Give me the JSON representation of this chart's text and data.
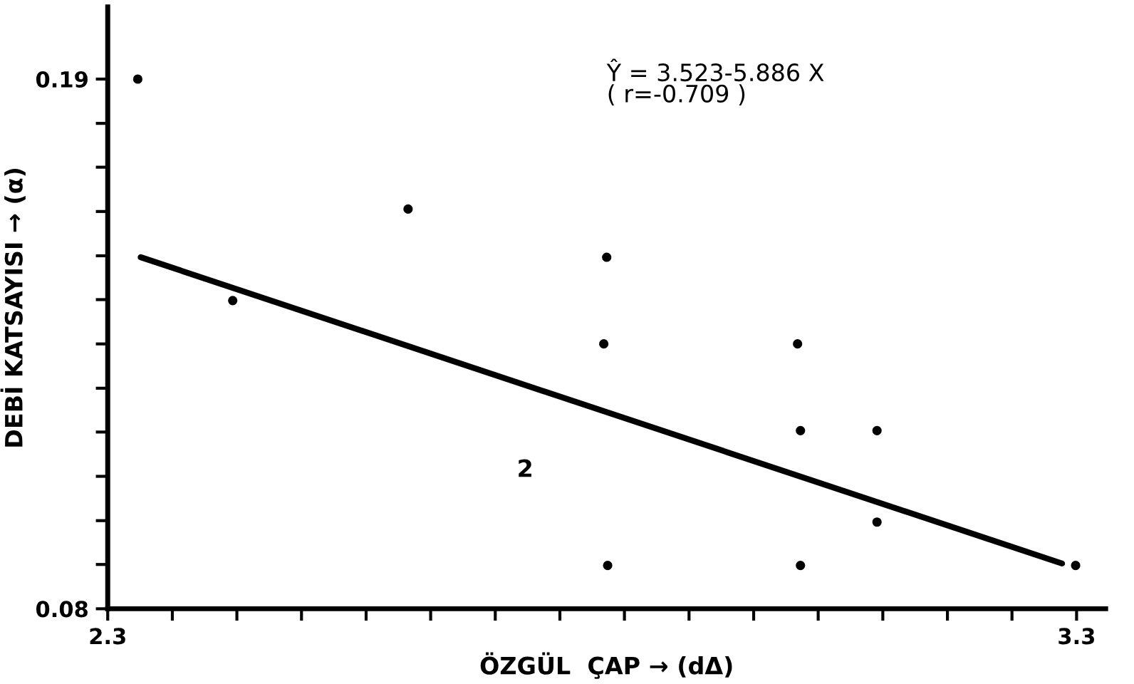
{
  "chart_data": {
    "type": "scatter",
    "xlabel": "ÖZGÜL  ÇAP → (dΔ)",
    "ylabel": "DEBİ KATSAYISI → (α)",
    "xlim": [
      2.3,
      3.33
    ],
    "ylim": [
      0.08,
      0.205
    ],
    "xticks": [
      2.3,
      {
        "value": 2.3667,
        "label": null
      },
      {
        "value": 2.4333,
        "label": null
      },
      {
        "value": 2.5,
        "label": null
      },
      {
        "value": 2.5667,
        "label": null
      },
      {
        "value": 2.6333,
        "label": null
      },
      {
        "value": 2.7,
        "label": null
      },
      {
        "value": 2.7667,
        "label": null
      },
      {
        "value": 2.8333,
        "label": null
      },
      {
        "value": 2.9,
        "label": null
      },
      {
        "value": 2.9667,
        "label": null
      },
      {
        "value": 3.0333,
        "label": null
      },
      {
        "value": 3.1,
        "label": null
      },
      {
        "value": 3.1667,
        "label": null
      },
      {
        "value": 3.2333,
        "label": null
      },
      3.3
    ],
    "yticks": [
      {
        "value": 0.08,
        "label": "0.08"
      },
      {
        "value": 0.0892,
        "label": null
      },
      {
        "value": 0.0983,
        "label": null
      },
      {
        "value": 0.1075,
        "label": null
      },
      {
        "value": 0.1167,
        "label": null
      },
      {
        "value": 0.1258,
        "label": null
      },
      {
        "value": 0.135,
        "label": null
      },
      {
        "value": 0.1442,
        "label": null
      },
      {
        "value": 0.1533,
        "label": null
      },
      {
        "value": 0.1625,
        "label": null
      },
      {
        "value": 0.1717,
        "label": null
      },
      {
        "value": 0.1808,
        "label": null
      },
      0.19
    ],
    "grid": false,
    "marker": "circle",
    "series": [
      {
        "color": "#000000",
        "x": [
          2.331,
          2.429,
          2.61,
          2.815,
          2.812,
          2.816,
          3.012,
          3.015,
          3.094,
          3.094,
          3.015,
          3.299
        ],
        "values": [
          0.19,
          0.144,
          0.163,
          0.153,
          0.135,
          0.089,
          0.135,
          0.117,
          0.117,
          0.098,
          0.089,
          0.089
        ]
      },
      {
        "type": "line",
        "color": "#000000",
        "x": [
          2.334,
          3.285
        ],
        "values": [
          0.153,
          0.0894
        ],
        "marker": "none"
      }
    ],
    "annotations": [
      "Ŷ = 3.523-5.886 X\n( r=-0.709 )",
      "2"
    ]
  }
}
